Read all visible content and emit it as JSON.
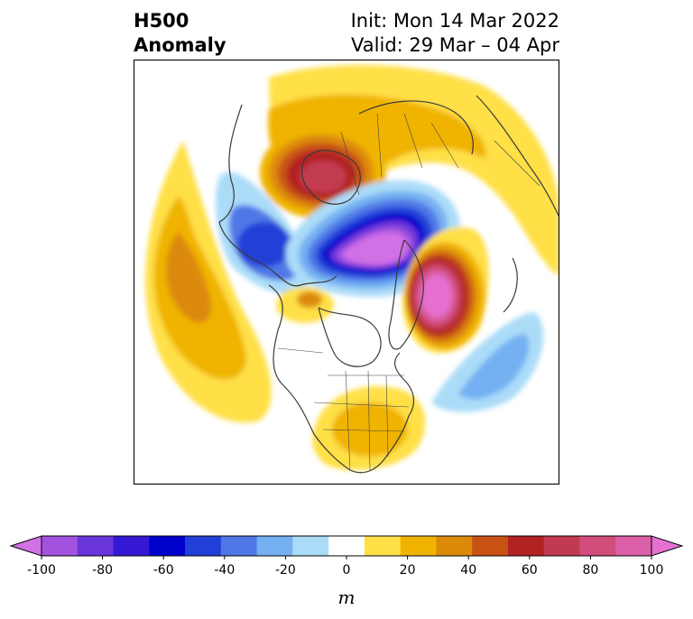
{
  "title": {
    "left_line1": "H500",
    "left_line2": "Anomaly",
    "right_line1": "Init: Mon 14 Mar 2022",
    "right_line2": "Valid: 29 Mar – 04 Apr"
  },
  "map": {
    "projection": "polar-stereographic-north",
    "variable": "500 hPa geopotential height anomaly",
    "anomaly_centers": [
      {
        "region": "Scandinavia / Northern Europe",
        "sign": "positive",
        "peak_m": 75
      },
      {
        "region": "Arctic Ocean / Northern Siberia",
        "sign": "negative",
        "peak_m": -100
      },
      {
        "region": "Greenland",
        "sign": "positive",
        "peak_m": 90
      },
      {
        "region": "Central Asia",
        "sign": "negative",
        "peak_m": -55
      },
      {
        "region": "North Pacific",
        "sign": "positive",
        "peak_m": 35
      },
      {
        "region": "North Atlantic",
        "sign": "negative",
        "peak_m": -30
      },
      {
        "region": "Eastern United States",
        "sign": "positive",
        "peak_m": 25
      },
      {
        "region": "Alaska / Yukon",
        "sign": "positive",
        "peak_m": 30
      }
    ]
  },
  "colorbar": {
    "ticks": [
      "-100",
      "-80",
      "-60",
      "-40",
      "-20",
      "0",
      "20",
      "40",
      "60",
      "80",
      "100"
    ],
    "unit": "m",
    "extend": "both",
    "colors": [
      "#d270e6",
      "#a352e0",
      "#6a35db",
      "#3518d4",
      "#0000cc",
      "#2240d8",
      "#4f78e6",
      "#74b0f2",
      "#aadcf8",
      "#ffffff",
      "#ffe047",
      "#f0b400",
      "#dc8a0a",
      "#c85214",
      "#b22222",
      "#c23a50",
      "#d24d7c",
      "#dc60a8",
      "#e670d2"
    ]
  }
}
